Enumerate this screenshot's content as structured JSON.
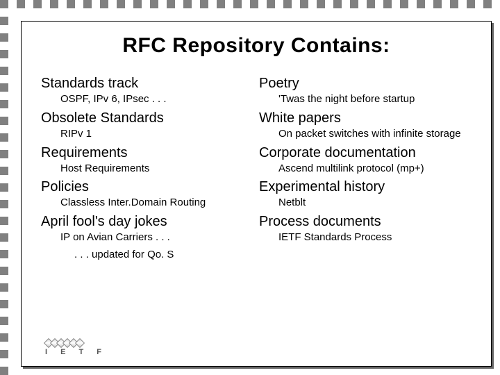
{
  "title": "RFC Repository Contains:",
  "columns": {
    "left": [
      {
        "cat": "Standards track",
        "subs": [
          "OSPF, IPv 6, IPsec . . ."
        ]
      },
      {
        "cat": "Obsolete Standards",
        "subs": [
          "RIPv 1"
        ]
      },
      {
        "cat": "Requirements",
        "subs": [
          "Host Requirements"
        ]
      },
      {
        "cat": "Policies",
        "subs": [
          "Classless Inter.Domain Routing"
        ]
      },
      {
        "cat": "April fool's day jokes",
        "subs": [
          "IP on Avian Carriers . . .",
          ". . . updated for Qo. S"
        ]
      }
    ],
    "right": [
      {
        "cat": "Poetry",
        "subs": [
          "'Twas the night before startup"
        ]
      },
      {
        "cat": "White papers",
        "subs": [
          "On packet switches with infinite storage"
        ]
      },
      {
        "cat": "Corporate documentation",
        "subs": [
          "Ascend multilink protocol (mp+)"
        ]
      },
      {
        "cat": "Experimental history",
        "subs": [
          "Netblt"
        ]
      },
      {
        "cat": "Process documents",
        "subs": [
          "IETF Standards Process"
        ]
      }
    ]
  },
  "logo": "I E T F",
  "border": {
    "square_size": 12,
    "gap": 12,
    "color": "#808080"
  },
  "colors": {
    "background": "#ffffff",
    "text": "#000000",
    "shadow": "#666666"
  },
  "fonts": {
    "title_size": 30,
    "cat_size": 20,
    "sub_size": 15
  }
}
